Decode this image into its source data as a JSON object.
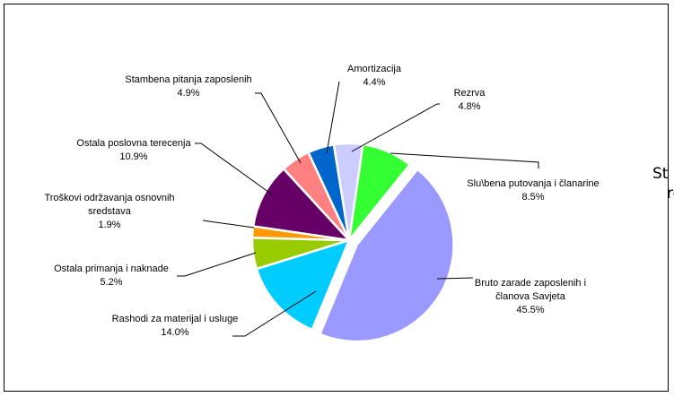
{
  "chart_data": {
    "type": "pie",
    "title": "",
    "slices": [
      {
        "label": [
          "Sluzbena putovanja i članarine"
        ],
        "display": [
          "Slu\\bena putovanja i članarine"
        ],
        "value": 8.5,
        "pct_label": "8.5%",
        "color": "#33ff33",
        "exploded": false
      },
      {
        "label": [
          "Bruto zarade zaposlenih i",
          "članova Savjeta"
        ],
        "value": 45.5,
        "pct_label": "45.5%",
        "color": "#9999ff",
        "exploded": true
      },
      {
        "label": [
          "Rashodi za materijal i usluge"
        ],
        "value": 14.0,
        "pct_label": "14.0%",
        "color": "#00ccff",
        "exploded": false
      },
      {
        "label": [
          "Ostala primanja i naknade"
        ],
        "value": 5.2,
        "pct_label": "5.2%",
        "color": "#99cc00",
        "exploded": false
      },
      {
        "label": [
          "Troškovi održavanja osnovnih",
          "sredstava"
        ],
        "value": 1.9,
        "pct_label": "1.9%",
        "color": "#ff9900",
        "exploded": false
      },
      {
        "label": [
          "Ostala poslovna terecenja"
        ],
        "value": 10.9,
        "pct_label": "10.9%",
        "color": "#660066",
        "exploded": false
      },
      {
        "label": [
          "Stambena pitanja zaposlenih"
        ],
        "value": 4.9,
        "pct_label": "4.9%",
        "color": "#ff8080",
        "exploded": false
      },
      {
        "label": [
          "Amortizacija"
        ],
        "value": 4.4,
        "pct_label": "4.4%",
        "color": "#0066cc",
        "exploded": false
      },
      {
        "label": [
          "Rezrva"
        ],
        "value": 4.8,
        "pct_label": "4.8%",
        "color": "#ccccff",
        "exploded": false
      }
    ]
  },
  "side_text": {
    "line1": "St",
    "line2": "re"
  }
}
